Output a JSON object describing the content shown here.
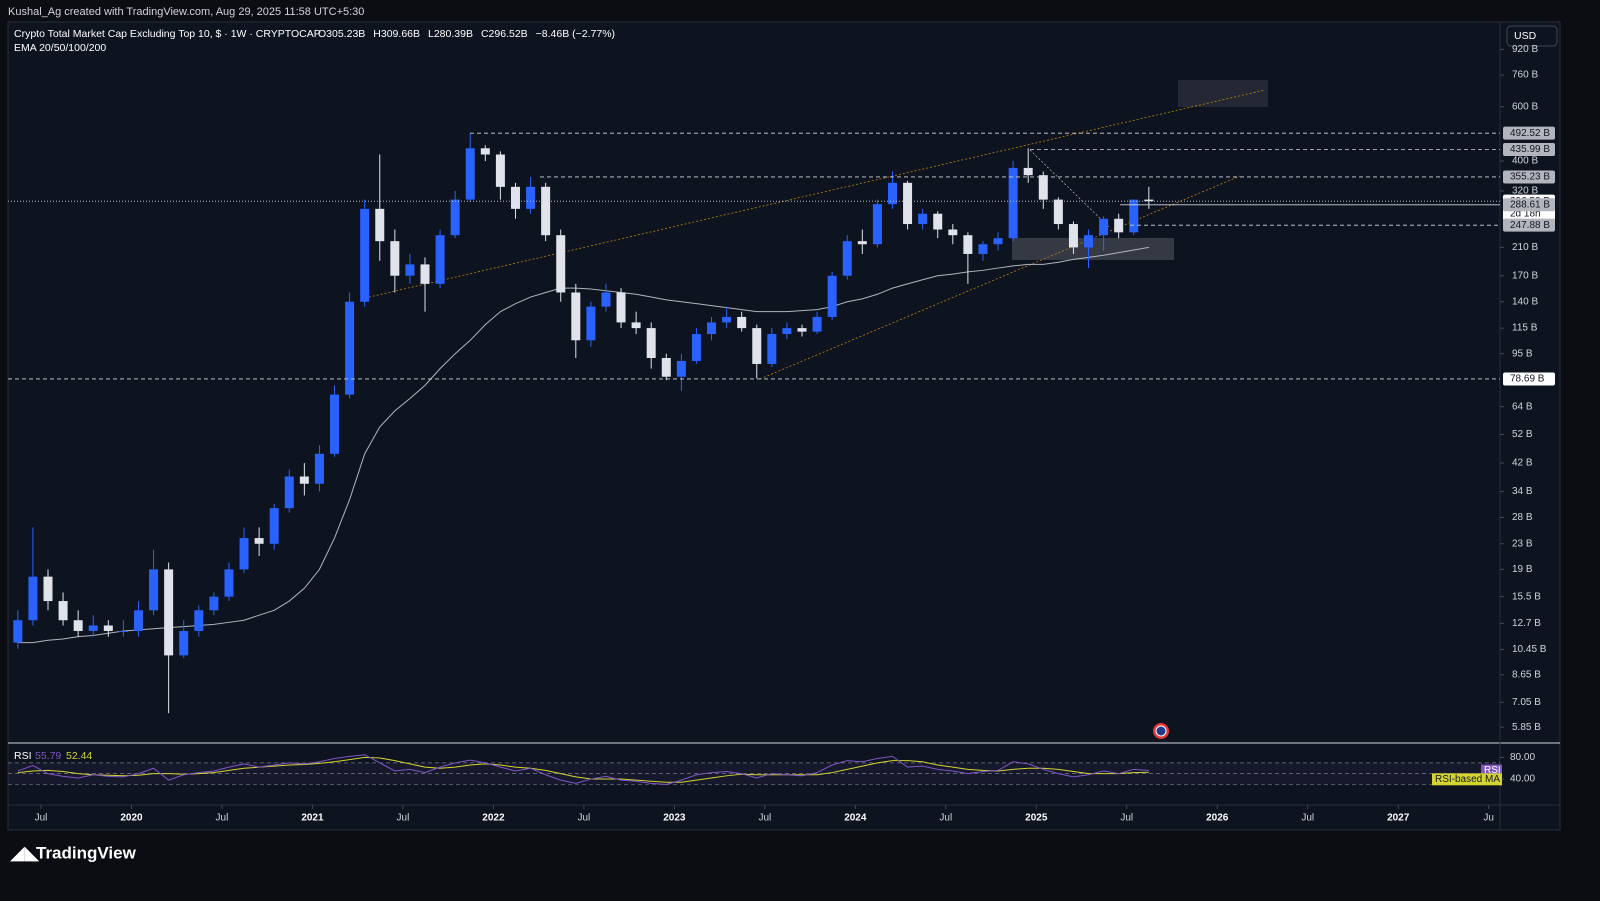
{
  "header": {
    "credit": "Kushal_Ag created with TradingView.com, Aug 29, 2025 11:58 UTC+5:30"
  },
  "chart_data": {
    "type": "candlestick",
    "title": "Crypto Total Market Cap Excluding Top 10, $ · 1W · CRYPTOCAP",
    "legend_values": [
      {
        "value": 305.23,
        "label": "O305.23B"
      },
      {
        "value": 309.66,
        "label": "H309.66B"
      },
      {
        "value": 280.39,
        "label": "L280.39B"
      },
      {
        "value": 296.52,
        "label": "C296.52B"
      },
      {
        "value": -8.46,
        "label": "−8.46B (−2.77%)"
      }
    ],
    "indicator": "EMA 20/50/100/200",
    "currency": "USD",
    "up_color": "#2962ff",
    "down_color": "#e0e3eb",
    "ema_color": "#b2b5be",
    "log_scale": true,
    "x": [
      "2019-05",
      "2019-06",
      "2019-07",
      "2019-08",
      "2019-09",
      "2019-10",
      "2019-11",
      "2019-12",
      "2020-01",
      "2020-02",
      "2020-03",
      "2020-04",
      "2020-05",
      "2020-06",
      "2020-07",
      "2020-08",
      "2020-09",
      "2020-10",
      "2020-11",
      "2020-12",
      "2021-01",
      "2021-02",
      "2021-03",
      "2021-04",
      "2021-05",
      "2021-06",
      "2021-07",
      "2021-08",
      "2021-09",
      "2021-10",
      "2021-11",
      "2021-12",
      "2022-01",
      "2022-02",
      "2022-03",
      "2022-04",
      "2022-05",
      "2022-06",
      "2022-07",
      "2022-08",
      "2022-09",
      "2022-10",
      "2022-11",
      "2022-12",
      "2023-01",
      "2023-02",
      "2023-03",
      "2023-04",
      "2023-05",
      "2023-06",
      "2023-07",
      "2023-08",
      "2023-09",
      "2023-10",
      "2023-11",
      "2023-12",
      "2024-01",
      "2024-02",
      "2024-03",
      "2024-04",
      "2024-05",
      "2024-06",
      "2024-07",
      "2024-08",
      "2024-09",
      "2024-10",
      "2024-11",
      "2024-12",
      "2025-01",
      "2025-02",
      "2025-03",
      "2025-04",
      "2025-05",
      "2025-06",
      "2025-07",
      "2025-08"
    ],
    "open": [
      11,
      13,
      18,
      15,
      13,
      12,
      12.5,
      12,
      12,
      14,
      19,
      10,
      12,
      14,
      15.5,
      19,
      24,
      23,
      30,
      38,
      36,
      45,
      70,
      140,
      280,
      220,
      170,
      185,
      160,
      230,
      300,
      440,
      420,
      330,
      280,
      330,
      230,
      150,
      105,
      135,
      150,
      120,
      115,
      92,
      80,
      90,
      110,
      120,
      125,
      115,
      88,
      110,
      115,
      112,
      125,
      170,
      220,
      215,
      290,
      340,
      250,
      270,
      240,
      230,
      200,
      215,
      225,
      380,
      360,
      300,
      250,
      210,
      230,
      260,
      235,
      300
    ],
    "high": [
      14,
      26,
      19,
      16,
      14,
      13.5,
      13,
      13,
      15,
      22,
      20,
      13,
      14.5,
      16,
      20,
      26,
      26,
      31,
      40,
      42,
      48,
      75,
      150,
      300,
      420,
      240,
      200,
      195,
      240,
      320,
      492.52,
      450,
      430,
      340,
      355.23,
      340,
      240,
      160,
      140,
      160,
      155,
      130,
      120,
      95,
      95,
      115,
      125,
      135,
      130,
      118,
      115,
      120,
      118,
      130,
      175,
      230,
      240,
      300,
      370,
      345,
      280,
      275,
      250,
      235,
      220,
      235,
      400,
      440,
      370,
      305,
      255,
      240,
      265,
      270,
      300,
      330
    ],
    "low": [
      10.5,
      12.5,
      14,
      12.5,
      11.5,
      11.5,
      11.5,
      11.5,
      11.5,
      13.5,
      6.5,
      9.8,
      11.5,
      13.5,
      15,
      18.5,
      21,
      22,
      29,
      33,
      34,
      44,
      68,
      135,
      190,
      150,
      160,
      130,
      155,
      225,
      295,
      400,
      300,
      260,
      270,
      220,
      140,
      92,
      100,
      130,
      115,
      110,
      85,
      78,
      72,
      88,
      105,
      115,
      112,
      79,
      86,
      106,
      108,
      110,
      122,
      165,
      200,
      210,
      280,
      240,
      240,
      225,
      215,
      160,
      190,
      205,
      220,
      340,
      280,
      240,
      200,
      180,
      205,
      225,
      230,
      280
    ],
    "close": [
      13,
      18,
      15,
      13,
      12,
      12.5,
      12,
      12,
      14,
      19,
      10,
      12,
      14,
      15.5,
      19,
      24,
      23,
      30,
      38,
      36,
      45,
      70,
      140,
      280,
      220,
      170,
      185,
      160,
      230,
      300,
      440,
      420,
      330,
      280,
      330,
      230,
      150,
      105,
      135,
      150,
      120,
      115,
      92,
      80,
      90,
      110,
      120,
      125,
      115,
      88,
      110,
      115,
      112,
      125,
      170,
      220,
      215,
      290,
      340,
      250,
      270,
      240,
      230,
      200,
      215,
      225,
      380,
      360,
      300,
      250,
      210,
      230,
      260,
      235,
      300,
      296.52
    ],
    "ema": [
      11,
      11,
      11.2,
      11.3,
      11.5,
      11.6,
      11.8,
      12,
      12.1,
      12.2,
      12.3,
      12.4,
      12.5,
      12.6,
      12.8,
      13,
      13.5,
      14,
      15,
      16.5,
      19,
      24,
      32,
      45,
      55,
      62,
      68,
      75,
      85,
      95,
      105,
      118,
      130,
      138,
      145,
      150,
      155,
      155,
      154,
      152,
      150,
      148,
      145,
      142,
      140,
      138,
      136,
      134,
      132,
      130,
      130,
      130,
      131,
      132,
      135,
      140,
      143,
      148,
      155,
      160,
      165,
      170,
      172,
      175,
      177,
      180,
      183,
      185,
      185,
      188,
      192,
      195,
      198,
      202,
      206,
      210
    ],
    "ylim": [
      5.24,
      1129
    ],
    "yticks": [
      {
        "value": 920,
        "label": "920 B"
      },
      {
        "value": 760,
        "label": "760 B"
      },
      {
        "value": 600,
        "label": "600 B"
      },
      {
        "value": 400,
        "label": "400 B"
      },
      {
        "value": 320,
        "label": "320 B"
      },
      {
        "value": 210,
        "label": "210 B"
      },
      {
        "value": 170,
        "label": "170 B"
      },
      {
        "value": 140,
        "label": "140 B"
      },
      {
        "value": 115,
        "label": "115 B"
      },
      {
        "value": 95,
        "label": "95 B"
      },
      {
        "value": 64,
        "label": "64 B"
      },
      {
        "value": 52,
        "label": "52 B"
      },
      {
        "value": 42,
        "label": "42 B"
      },
      {
        "value": 34,
        "label": "34 B"
      },
      {
        "value": 28,
        "label": "28 B"
      },
      {
        "value": 23,
        "label": "23 B"
      },
      {
        "value": 19,
        "label": "19 B"
      },
      {
        "value": 15.5,
        "label": "15.5 B"
      },
      {
        "value": 12.7,
        "label": "12.7 B"
      },
      {
        "value": 10.45,
        "label": "10.45 B"
      },
      {
        "value": 8.65,
        "label": "8.65 B"
      },
      {
        "value": 7.05,
        "label": "7.05 B"
      },
      {
        "value": 5.85,
        "label": "5.85 B"
      }
    ],
    "levels": [
      {
        "value": 492.52,
        "label": "492.52 B"
      },
      {
        "value": 435.99,
        "label": "435.99 B"
      },
      {
        "value": 355.23,
        "label": "355.23 B"
      },
      {
        "value": 296.52,
        "label": "296.52 B"
      },
      {
        "value": 288.61,
        "label": "288.61 B"
      },
      {
        "value": 247.88,
        "label": "247.88 B"
      },
      {
        "value": 78.69,
        "label": "78.69 B"
      }
    ],
    "countdown": "2d 18h",
    "xticks": [
      {
        "value": "2019-07",
        "label": "Jul"
      },
      {
        "value": "2020-01",
        "label": "2020"
      },
      {
        "value": "2020-07",
        "label": "Jul"
      },
      {
        "value": "2021-01",
        "label": "2021"
      },
      {
        "value": "2021-07",
        "label": "Jul"
      },
      {
        "value": "2022-01",
        "label": "2022"
      },
      {
        "value": "2022-07",
        "label": "Jul"
      },
      {
        "value": "2023-01",
        "label": "2023"
      },
      {
        "value": "2023-07",
        "label": "Jul"
      },
      {
        "value": "2024-01",
        "label": "2024"
      },
      {
        "value": "2024-07",
        "label": "Jul"
      },
      {
        "value": "2025-01",
        "label": "2025"
      },
      {
        "value": "2025-07",
        "label": "Jul"
      },
      {
        "value": "2026-01",
        "label": "2026"
      },
      {
        "value": "2026-07",
        "label": "Jul"
      },
      {
        "value": "2027-01",
        "label": "2027"
      },
      {
        "value": "2027-07",
        "label": "Ju"
      }
    ],
    "rsi": {
      "title": "RSI",
      "value": 55.79,
      "ma_value": 52.44,
      "color": "#7e57c2",
      "ma_color": "#d4d433",
      "ylim": [
        -8,
        103
      ],
      "yticks": [
        {
          "value": 80,
          "label": "80.00"
        },
        {
          "value": 40,
          "label": "40.00"
        }
      ],
      "bands": [
        70,
        50,
        30
      ],
      "tag": "RSI",
      "ma_tag": "RSI-based MA",
      "values": [
        55,
        65,
        50,
        45,
        42,
        48,
        45,
        44,
        50,
        60,
        38,
        48,
        52,
        55,
        62,
        68,
        62,
        66,
        70,
        68,
        72,
        78,
        82,
        85,
        70,
        55,
        58,
        52,
        62,
        70,
        75,
        70,
        62,
        55,
        60,
        48,
        38,
        32,
        40,
        45,
        38,
        36,
        32,
        30,
        38,
        48,
        52,
        54,
        50,
        42,
        50,
        48,
        46,
        52,
        66,
        74,
        72,
        78,
        82,
        62,
        64,
        58,
        55,
        50,
        54,
        56,
        72,
        68,
        58,
        50,
        44,
        48,
        55,
        50,
        58,
        55.79
      ],
      "ma": [
        52,
        55,
        56,
        54,
        50,
        48,
        47,
        46,
        47,
        50,
        50,
        49,
        50,
        52,
        56,
        60,
        62,
        64,
        66,
        67,
        69,
        72,
        76,
        80,
        79,
        74,
        68,
        62,
        60,
        62,
        66,
        68,
        66,
        62,
        60,
        56,
        50,
        44,
        40,
        40,
        40,
        38,
        36,
        34,
        34,
        38,
        42,
        46,
        49,
        48,
        48,
        48,
        48,
        48,
        52,
        58,
        64,
        70,
        74,
        74,
        72,
        66,
        62,
        58,
        56,
        55,
        58,
        60,
        60,
        58,
        54,
        50,
        50,
        50,
        52,
        52.44
      ]
    }
  },
  "footer": {
    "brand": "TradingView"
  }
}
